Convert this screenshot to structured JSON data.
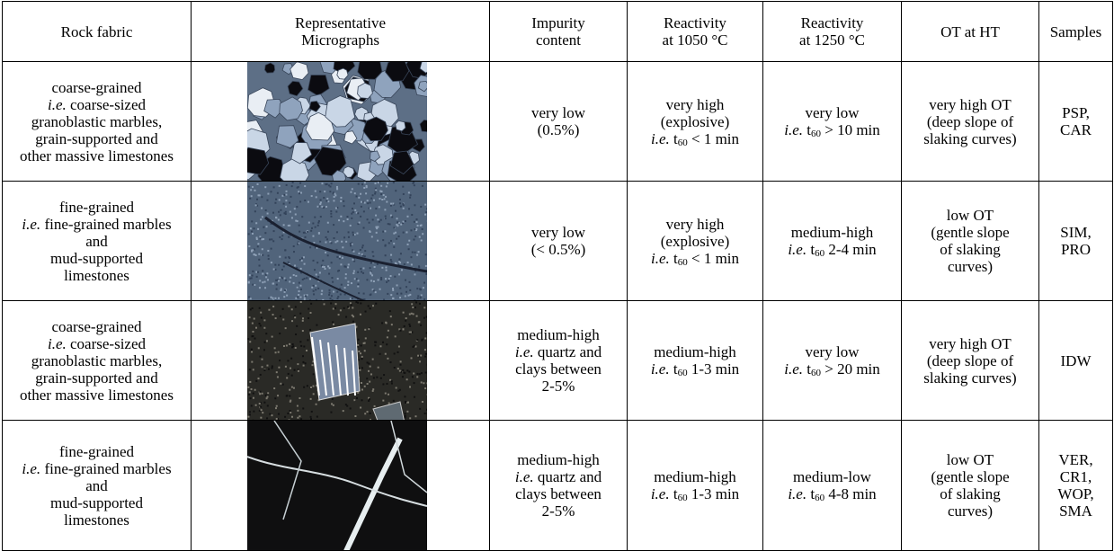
{
  "table": {
    "header": [
      [
        "Rock fabric"
      ],
      [
        "Representative",
        "Micrographs"
      ],
      [
        "Impurity",
        "content"
      ],
      [
        "Reactivity",
        "at 1050 °C"
      ],
      [
        "Reactivity",
        "at 1250 °C"
      ],
      [
        "OT at HT"
      ],
      [
        "Samples"
      ]
    ],
    "rows": [
      {
        "fabric": [
          "coarse-grained",
          "i.e. coarse-sized",
          "granoblastic marbles,",
          "grain-supported and",
          "other massive limestones"
        ],
        "impurity": [
          "very low",
          "(0.5%)"
        ],
        "r1050": [
          "very high",
          "(explosive)",
          "i.e. t60 < 1 min"
        ],
        "r1250": [
          "very low",
          "i.e. t60 > 10 min"
        ],
        "ot": [
          "very high OT",
          "(deep slope of",
          "slaking curves)"
        ],
        "samples": [
          "PSP,",
          "CAR"
        ]
      },
      {
        "fabric": [
          "fine-grained",
          "i.e. fine-grained marbles",
          "and",
          "mud-supported",
          "limestones"
        ],
        "impurity": [
          "very low",
          "(< 0.5%)"
        ],
        "r1050": [
          "very high",
          "(explosive)",
          "i.e. t60 < 1 min"
        ],
        "r1250": [
          "medium-high",
          "i.e. t60 2-4 min"
        ],
        "ot": [
          "low OT",
          "(gentle slope",
          "of slaking",
          "curves)"
        ],
        "samples": [
          "SIM,",
          "PRO"
        ]
      },
      {
        "fabric": [
          "coarse-grained",
          "i.e. coarse-sized",
          "granoblastic marbles,",
          "grain-supported and",
          "other massive limestones"
        ],
        "impurity": [
          "medium-high",
          "i.e. quartz and",
          "clays between",
          "2-5%"
        ],
        "r1050": [
          "medium-high",
          "i.e. t60 1-3 min"
        ],
        "r1250": [
          "very low",
          "i.e. t60 > 20 min"
        ],
        "ot": [
          "very high OT",
          "(deep slope of",
          "slaking curves)"
        ],
        "samples": [
          "IDW"
        ]
      },
      {
        "fabric": [
          "fine-grained",
          "i.e. fine-grained marbles",
          "and",
          "mud-supported",
          "limestones"
        ],
        "impurity": [
          "medium-high",
          "i.e. quartz and",
          "clays between",
          "2-5%"
        ],
        "r1050": [
          "medium-high",
          "i.e. t60 1-3 min"
        ],
        "r1250": [
          "medium-low",
          "i.e. t60 4-8 min"
        ],
        "ot": [
          "low OT",
          "(gentle slope",
          "of slaking",
          "curves)"
        ],
        "samples": [
          "VER,",
          "CR1,",
          "WOP,",
          "SMA"
        ]
      }
    ]
  }
}
